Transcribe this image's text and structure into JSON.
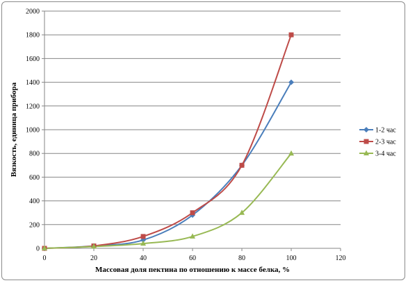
{
  "chart_data": {
    "type": "line",
    "xlabel": "Массовая доля пектина по отношению к массе белка, %",
    "ylabel": "Вязкость, единица прибора",
    "xlim": [
      0,
      120
    ],
    "ylim": [
      0,
      2000
    ],
    "x_ticks": [
      0,
      20,
      40,
      60,
      80,
      100,
      120
    ],
    "y_ticks": [
      0,
      200,
      400,
      600,
      800,
      1000,
      1200,
      1400,
      1600,
      1800,
      2000
    ],
    "grid": "horizontal",
    "legend_position": "right",
    "x": [
      0,
      20,
      40,
      60,
      80,
      100
    ],
    "series": [
      {
        "name": "1-2 час",
        "values": [
          0,
          20,
          70,
          280,
          700,
          1400
        ],
        "color": "#4a7ebb",
        "marker": "diamond"
      },
      {
        "name": "2-3 час",
        "values": [
          0,
          20,
          100,
          300,
          700,
          1800
        ],
        "color": "#be4b48",
        "marker": "square"
      },
      {
        "name": "3-4 час",
        "values": [
          0,
          15,
          40,
          100,
          300,
          800
        ],
        "color": "#98b954",
        "marker": "triangle"
      }
    ]
  }
}
